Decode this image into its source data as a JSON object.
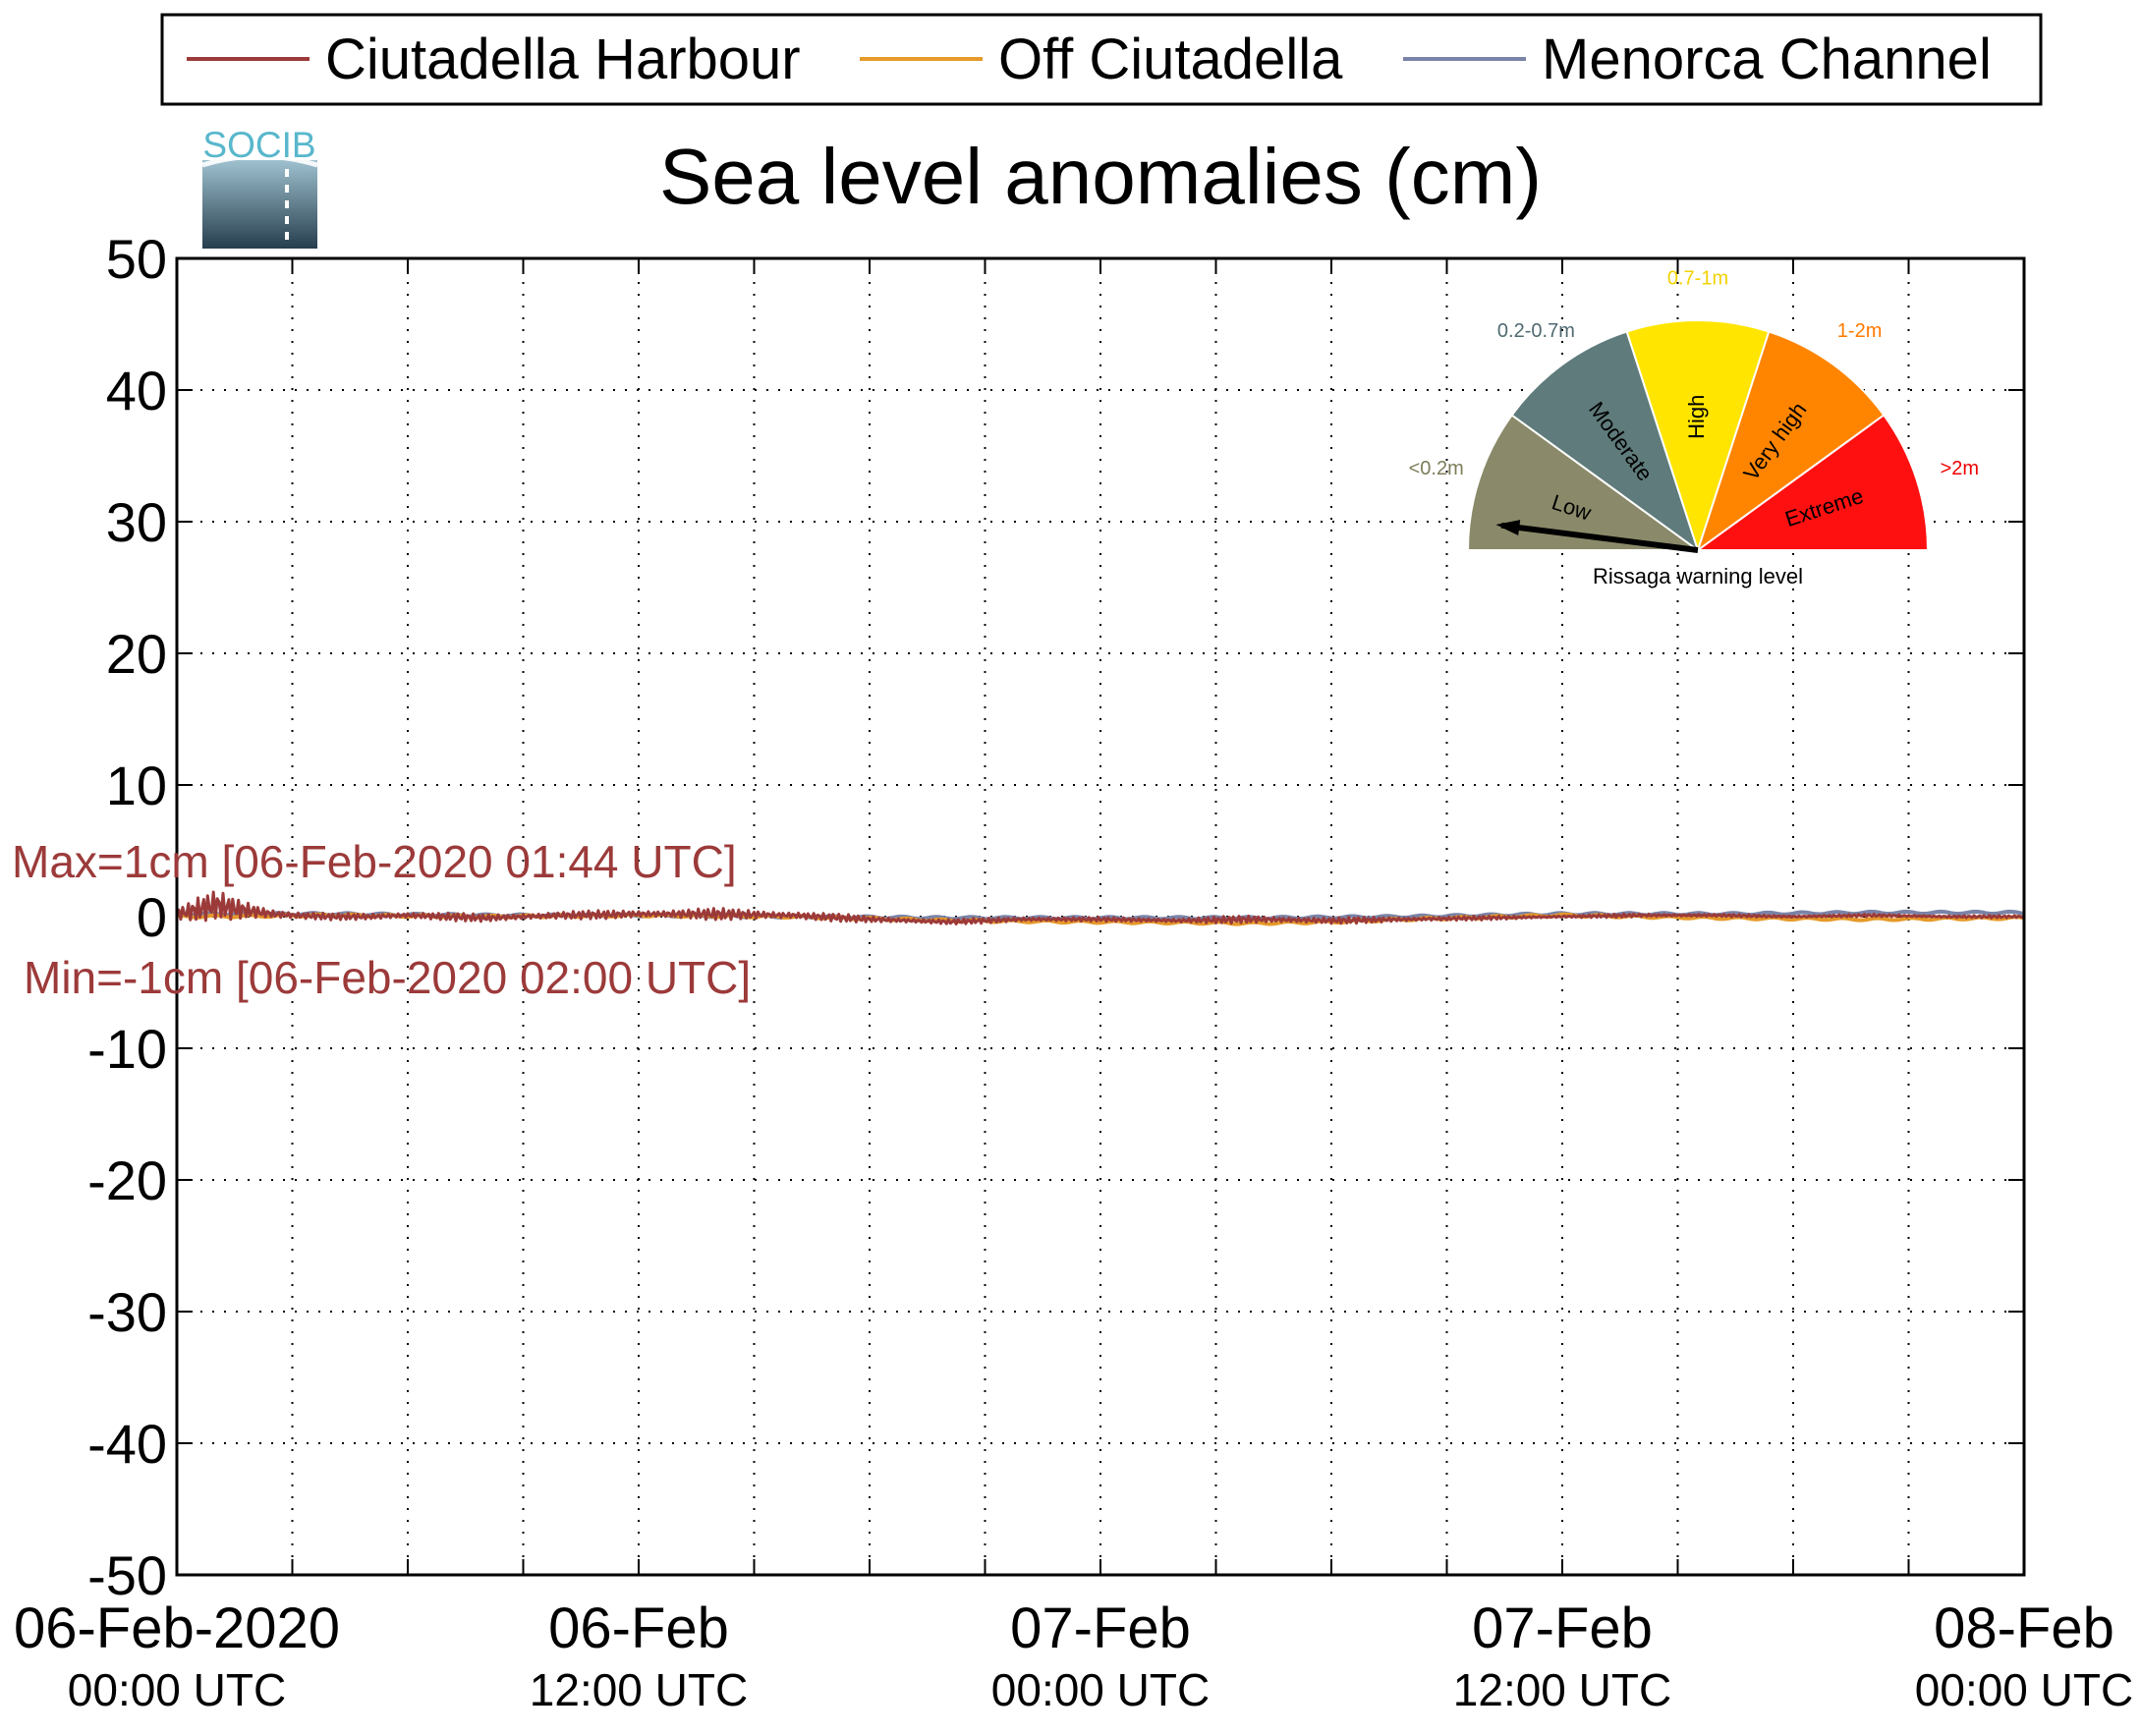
{
  "chart_data": {
    "type": "line",
    "title": "Sea level anomalies (cm)",
    "xlabel": "",
    "ylabel": "",
    "ylim": [
      -50,
      50
    ],
    "yticks": [
      50,
      40,
      30,
      20,
      10,
      0,
      -10,
      -20,
      -30,
      -40,
      -50
    ],
    "xlim_hours": [
      0,
      48
    ],
    "xgrid_hours": [
      3,
      6,
      9,
      12,
      15,
      18,
      21,
      24,
      27,
      30,
      33,
      36,
      39,
      42,
      45
    ],
    "xticks": [
      {
        "hour": 0,
        "date": "06-Feb-2020",
        "time": "00:00 UTC"
      },
      {
        "hour": 12,
        "date": "06-Feb",
        "time": "12:00 UTC"
      },
      {
        "hour": 24,
        "date": "07-Feb",
        "time": "00:00 UTC"
      },
      {
        "hour": 36,
        "date": "07-Feb",
        "time": "12:00 UTC"
      },
      {
        "hour": 48,
        "date": "08-Feb",
        "time": "00:00 UTC"
      }
    ],
    "grid": true,
    "legend_position": "top",
    "series": [
      {
        "name": "Ciutadella Harbour",
        "color": "#9c3a3a",
        "hours": [
          0,
          0.5,
          1,
          1.5,
          2,
          2.5,
          3,
          4,
          5,
          6,
          8,
          10,
          12,
          14,
          16,
          18,
          20,
          22,
          24,
          26,
          28,
          30,
          32,
          34,
          36,
          38,
          40,
          42,
          44,
          46,
          48
        ],
        "values": [
          0.2,
          0.5,
          0.9,
          0.6,
          0.4,
          0.2,
          0.1,
          0.0,
          0.0,
          0.1,
          -0.1,
          0.1,
          0.2,
          0.2,
          0.1,
          -0.2,
          -0.4,
          -0.2,
          -0.2,
          -0.3,
          -0.2,
          -0.3,
          -0.2,
          -0.1,
          0.0,
          0.1,
          0.1,
          0.0,
          0.1,
          0.0,
          0.0
        ],
        "oscillation_amplitudes": [
          0.5,
          0.9,
          1.1,
          1.0,
          0.8,
          0.5,
          0.3,
          0.25,
          0.25,
          0.3,
          0.3,
          0.3,
          0.35,
          0.45,
          0.35,
          0.25,
          0.2,
          0.2,
          0.15,
          0.2,
          0.3,
          0.25,
          0.2,
          0.15,
          0.1,
          0.15,
          0.1,
          0.1,
          0.1,
          0.1,
          0.1
        ]
      },
      {
        "name": "Off Ciutadella",
        "color": "#e59a2a",
        "hours": [
          0,
          4,
          8,
          12,
          16,
          20,
          24,
          28,
          30,
          32,
          36,
          40,
          44,
          48
        ],
        "values": [
          0.0,
          0.1,
          0.0,
          0.1,
          0.0,
          -0.3,
          -0.4,
          -0.5,
          -0.4,
          -0.2,
          0.1,
          -0.1,
          -0.2,
          -0.1
        ]
      },
      {
        "name": "Menorca Channel",
        "color": "#7a84a8",
        "hours": [
          0,
          4,
          8,
          12,
          16,
          20,
          24,
          28,
          32,
          36,
          40,
          44,
          48
        ],
        "values": [
          0.2,
          0.2,
          0.1,
          0.1,
          0.0,
          -0.1,
          -0.1,
          -0.1,
          0.0,
          0.2,
          0.2,
          0.3,
          0.3
        ]
      }
    ],
    "annotations": {
      "max_label": "Max=1cm [06-Feb-2020 01:44 UTC]",
      "min_label": "Min=-1cm [06-Feb-2020 02:00 UTC]",
      "color": "#9c3a3a"
    }
  },
  "logo": {
    "text": "SOCIB"
  },
  "gauge": {
    "title": "Rissaga warning level",
    "needle_level": "Low",
    "segments": [
      {
        "label": "Low",
        "range": "<0.2m",
        "color": "#8a8a6a",
        "range_color": "#7d7d5a"
      },
      {
        "label": "Moderate",
        "range": "0.2-0.7m",
        "color": "#5f7b7b",
        "range_color": "#4f6a70"
      },
      {
        "label": "High",
        "range": "0.7-1m",
        "color": "#ffe500",
        "range_color": "#f2d200"
      },
      {
        "label": "Very high",
        "range": "1-2m",
        "color": "#ff8500",
        "range_color": "#ff7a00"
      },
      {
        "label": "Extreme",
        "range": ">2m",
        "color": "#ff1010",
        "range_color": "#ee0000"
      }
    ]
  }
}
